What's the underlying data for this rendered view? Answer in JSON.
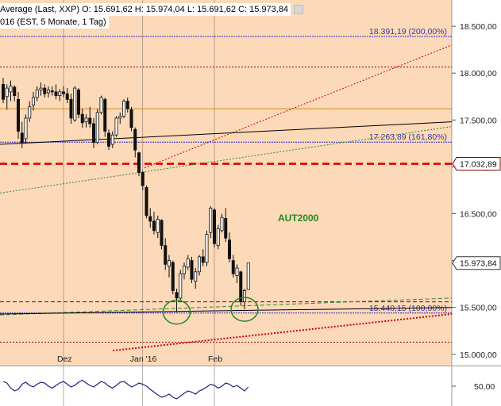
{
  "header": {
    "line1": "Average (Last, XXP)  O: 15.691,62  H: 15.974,04  L: 15.691,62  C: 15.973,84",
    "line2": "016 (EST, 5 Monate, 1 Tag)",
    "icon": "settings-icon"
  },
  "chart_data": {
    "type": "candlestick",
    "annotation": "AUT2000",
    "y_ticks": [
      "18.500,00",
      "18.000,00",
      "17.500,00",
      "17.000,00",
      "16.500,00",
      "16.000,00",
      "15.500,00",
      "15.000,00"
    ],
    "y_tick_values": [
      18500,
      18000,
      17500,
      17000,
      16500,
      16000,
      15500,
      15000
    ],
    "x_ticks": [
      "Dez",
      "Jan '16",
      "Feb"
    ],
    "ylim": [
      14880,
      18780
    ],
    "price_labels": [
      {
        "text": "17.032,89",
        "value": 17032.89
      },
      {
        "text": "15.973,84",
        "value": 15973.84
      }
    ],
    "fib_levels": [
      {
        "label": "18.391,19 (200,00%)",
        "value": 18391.19
      },
      {
        "label": "17.263,89 (161,80%)",
        "value": 17263.89
      },
      {
        "label": "15.440,15 (100,00%)",
        "value": 15440.15
      }
    ],
    "horizontal_lines": [
      {
        "value": 18065,
        "color": "#8b0000",
        "style": "dotted"
      },
      {
        "value": 17620,
        "color": "#d48a1a",
        "style": "solid"
      },
      {
        "value": 17032.89,
        "color": "#e00000",
        "style": "dashed"
      },
      {
        "value": 15560,
        "color": "#8b0000",
        "style": "dashed"
      },
      {
        "value": 15130,
        "color": "#8b0000",
        "style": "dotted"
      }
    ],
    "trendlines": [
      {
        "color": "#000000",
        "style": "solid",
        "from": [
          0,
          17240
        ],
        "to": [
          100,
          17480
        ]
      },
      {
        "color": "#d00000",
        "style": "dotted",
        "from": [
          32,
          16990
        ],
        "to": [
          100,
          18300
        ]
      },
      {
        "color": "#2e8b2e",
        "style": "dotted",
        "from": [
          0,
          16720
        ],
        "to": [
          100,
          17430
        ]
      },
      {
        "color": "#2e8b2e",
        "style": "dashed",
        "from": [
          0,
          15420
        ],
        "to": [
          100,
          15600
        ]
      },
      {
        "color": "#000000",
        "style": "solid",
        "from": [
          0,
          15430
        ],
        "to": [
          100,
          15500
        ]
      },
      {
        "color": "#d00000",
        "style": "dotted",
        "from": [
          25,
          15040
        ],
        "to": [
          100,
          15430
        ]
      }
    ],
    "candles": [
      [
        17880,
        17950,
        17680,
        17720
      ],
      [
        17750,
        17880,
        17610,
        17840
      ],
      [
        17800,
        17920,
        17700,
        17860
      ],
      [
        17850,
        17870,
        17700,
        17760
      ],
      [
        17720,
        17800,
        17300,
        17380
      ],
      [
        17360,
        17480,
        17200,
        17260
      ],
      [
        17300,
        17560,
        17250,
        17520
      ],
      [
        17520,
        17700,
        17480,
        17640
      ],
      [
        17660,
        17800,
        17600,
        17740
      ],
      [
        17740,
        17860,
        17700,
        17820
      ],
      [
        17820,
        17900,
        17760,
        17840
      ],
      [
        17840,
        17880,
        17740,
        17780
      ],
      [
        17790,
        17860,
        17740,
        17820
      ],
      [
        17810,
        17860,
        17760,
        17800
      ],
      [
        17800,
        17880,
        17720,
        17760
      ],
      [
        17760,
        17830,
        17700,
        17800
      ],
      [
        17800,
        17860,
        17740,
        17780
      ],
      [
        17780,
        17840,
        17680,
        17720
      ],
      [
        17720,
        17780,
        17460,
        17520
      ],
      [
        17500,
        17860,
        17480,
        17840
      ],
      [
        17820,
        17840,
        17520,
        17560
      ],
      [
        17560,
        17620,
        17420,
        17470
      ],
      [
        17480,
        17560,
        17420,
        17520
      ],
      [
        17520,
        17640,
        17420,
        17460
      ],
      [
        17460,
        17520,
        17200,
        17260
      ],
      [
        17260,
        17620,
        17240,
        17580
      ],
      [
        17580,
        17760,
        17560,
        17740
      ],
      [
        17720,
        17740,
        17320,
        17380
      ],
      [
        17360,
        17400,
        17180,
        17220
      ],
      [
        17240,
        17380,
        17200,
        17340
      ],
      [
        17340,
        17540,
        17320,
        17520
      ],
      [
        17520,
        17580,
        17460,
        17540
      ],
      [
        17540,
        17720,
        17520,
        17700
      ],
      [
        17700,
        17740,
        17580,
        17620
      ],
      [
        17610,
        17640,
        17380,
        17420
      ],
      [
        17400,
        17420,
        17100,
        17180
      ],
      [
        17150,
        17160,
        16900,
        16940
      ],
      [
        16940,
        16960,
        16750,
        16800
      ],
      [
        16780,
        16800,
        16450,
        16480
      ],
      [
        16470,
        16560,
        16350,
        16420
      ],
      [
        16420,
        16520,
        16280,
        16320
      ],
      [
        16300,
        16480,
        16240,
        16440
      ],
      [
        16430,
        16440,
        16120,
        16160
      ],
      [
        16160,
        16240,
        15900,
        15960
      ],
      [
        15940,
        16060,
        15820,
        16000
      ],
      [
        15980,
        16000,
        15640,
        15680
      ],
      [
        15660,
        15700,
        15450,
        15600
      ],
      [
        15600,
        15900,
        15580,
        15860
      ],
      [
        15860,
        15980,
        15800,
        15940
      ],
      [
        15930,
        16060,
        15900,
        16020
      ],
      [
        16000,
        16040,
        15760,
        15800
      ],
      [
        15780,
        15920,
        15700,
        15880
      ],
      [
        15880,
        16060,
        15840,
        16040
      ],
      [
        16040,
        16120,
        15940,
        15980
      ],
      [
        15980,
        16320,
        15940,
        16280
      ],
      [
        16300,
        16580,
        16240,
        16560
      ],
      [
        16540,
        16560,
        16140,
        16180
      ],
      [
        16160,
        16380,
        16120,
        16340
      ],
      [
        16320,
        16500,
        16300,
        16460
      ],
      [
        16450,
        16560,
        16200,
        16240
      ],
      [
        16220,
        16300,
        15980,
        16020
      ],
      [
        16000,
        16060,
        15820,
        15860
      ],
      [
        15840,
        15960,
        15760,
        15920
      ],
      [
        15880,
        15890,
        15520,
        15560
      ],
      [
        15560,
        15700,
        15480,
        15680
      ],
      [
        15691.62,
        15974.04,
        15691.62,
        15973.84
      ]
    ],
    "oscillator": {
      "tick_label": "50,00",
      "tick_value": 50,
      "ylim": [
        0,
        100
      ],
      "values": [
        62,
        58,
        45,
        38,
        42,
        55,
        60,
        52,
        48,
        55,
        60,
        58,
        50,
        45,
        52,
        58,
        62,
        55,
        48,
        52,
        60,
        65,
        58,
        52,
        48,
        55,
        62,
        58,
        50,
        45,
        52,
        60,
        62,
        55,
        48,
        52,
        58,
        55,
        50,
        42,
        35,
        28,
        22,
        25,
        30,
        22,
        18,
        25,
        32,
        38,
        35,
        30,
        38,
        42,
        48,
        55,
        52,
        45,
        50,
        58,
        55,
        48,
        52,
        45,
        38,
        48
      ]
    }
  },
  "colors": {
    "plot_bg": "#fcd9b8",
    "candle": "#111111",
    "axis_bg": "#ffffff",
    "fib_line": "#2b2bcc",
    "fib_text": "#3a3a9a",
    "annotation": "#1e8a1e",
    "oscillator": "#1a237e",
    "price_label_dark": "#8b0000"
  }
}
